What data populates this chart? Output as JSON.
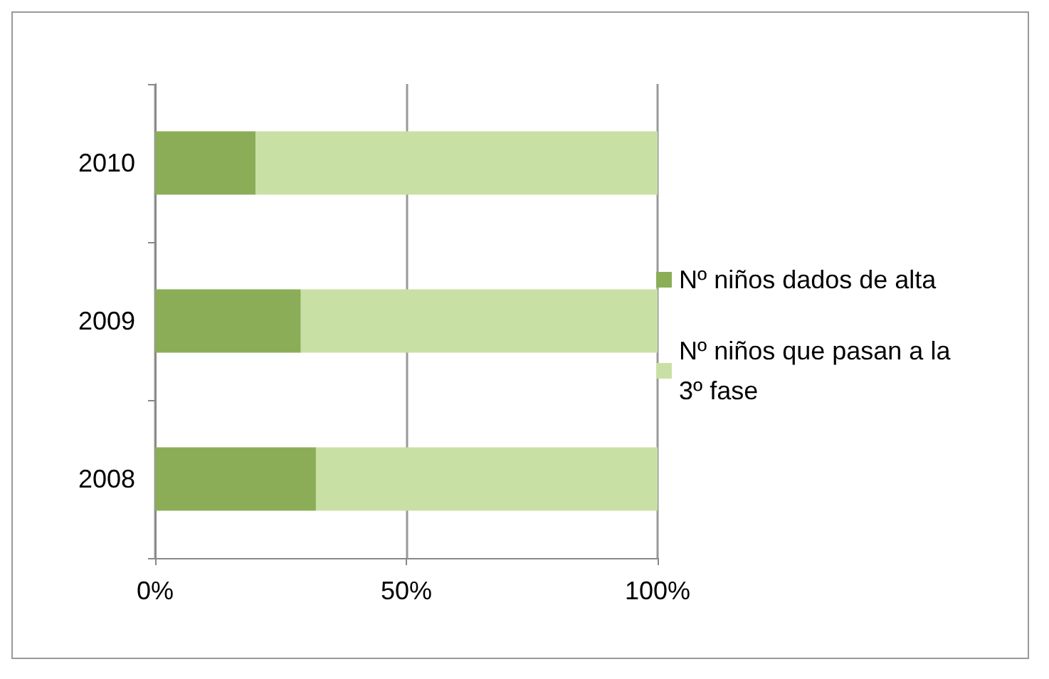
{
  "chart_data": {
    "type": "bar",
    "orientation": "horizontal",
    "stacked": true,
    "categories": [
      "2010",
      "2009",
      "2008"
    ],
    "series": [
      {
        "name": "Nº niños dados de alta",
        "color": "#8cad58",
        "values": [
          20,
          29,
          32
        ]
      },
      {
        "name": "Nº niños que pasan a la 3º fase",
        "color": "#c9e0a5",
        "values": [
          80,
          71,
          68
        ]
      }
    ],
    "xlim": [
      0,
      100
    ],
    "xticks": [
      {
        "value": 0,
        "label": "0%"
      },
      {
        "value": 50,
        "label": "50%"
      },
      {
        "value": 100,
        "label": "100%"
      }
    ],
    "grid": "x",
    "legend": "right"
  }
}
